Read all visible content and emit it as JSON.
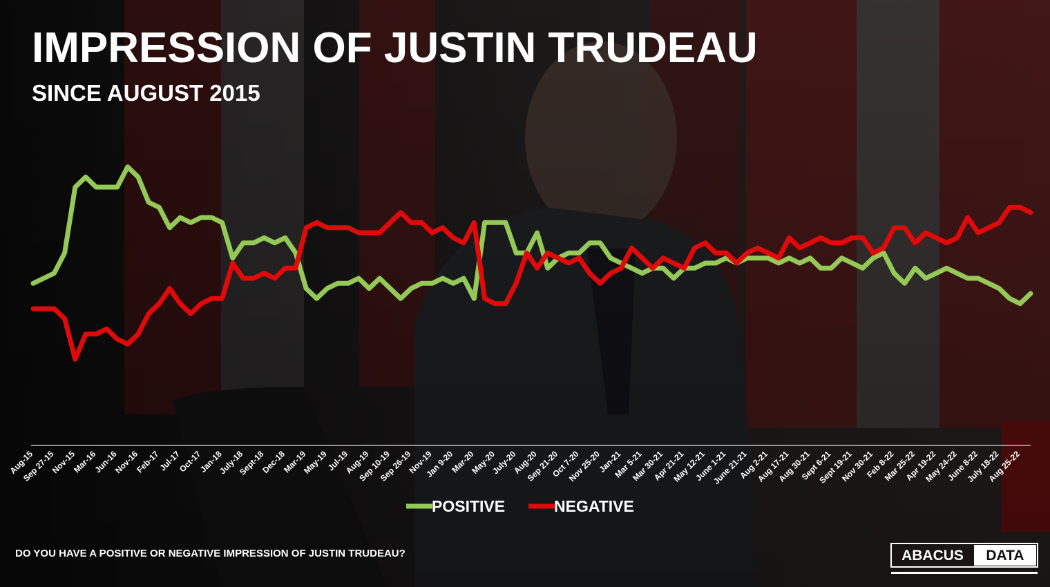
{
  "chart_data": {
    "type": "line",
    "title": "IMPRESSION OF JUSTIN TRUDEAU",
    "subtitle": "SINCE AUGUST 2015",
    "question": "DO YOU HAVE A POSITIVE OR NEGATIVE IMPRESSION OF JUSTIN TRUDEAU?",
    "source_logo": [
      "ABACUS",
      "DATA"
    ],
    "categories": [
      "Aug-15",
      null,
      "Sep 27-15",
      null,
      "Nov-15",
      null,
      "Mar-16",
      null,
      "Jun-16",
      null,
      "Nov-16",
      null,
      "Feb-17",
      null,
      "Jul-17",
      null,
      "Oct-17",
      null,
      "Jan-18",
      null,
      "July-18",
      null,
      "Sept-18",
      null,
      "Dec-18",
      null,
      "Mar-19",
      null,
      "May-19",
      null,
      "Jul-19",
      null,
      "Aug-19",
      null,
      "Sep 10-19",
      null,
      "Sep 26-19",
      null,
      "Nov-19",
      null,
      "Jan 9-20",
      null,
      "Mar-20",
      null,
      "May-20",
      null,
      "July-20",
      null,
      "Aug-20",
      null,
      "Sep 21-20",
      null,
      "Oct 7-20",
      null,
      "Nov 25-20",
      null,
      "Jan-21",
      null,
      "Mar 5-21",
      null,
      "Mar 30-21",
      null,
      "Apr 21-21",
      null,
      "May 12-21",
      null,
      "June 1-21",
      null,
      "June 21-21",
      null,
      "Aug 2-21",
      null,
      "Aug 17-21",
      null,
      "Aug 30-21",
      null,
      "Sept 6-21",
      null,
      "Sept 19-21",
      null,
      "Nov 30-21",
      null,
      "Feb 8-22",
      null,
      "Mar 25-22",
      null,
      "Apr 19-22",
      null,
      "May 24-22",
      null,
      "June 8-22",
      null,
      "July 18-22",
      null,
      "Aug 25-22",
      null
    ],
    "series": [
      {
        "name": "POSITIVE",
        "color": "#95c957",
        "values": [
          32,
          33,
          34,
          38,
          51,
          53,
          51,
          51,
          51,
          55,
          53,
          48,
          47,
          43,
          45,
          44,
          45,
          45,
          44,
          37,
          40,
          40,
          41,
          40,
          41,
          38,
          31,
          29,
          31,
          32,
          32,
          33,
          31,
          33,
          31,
          29,
          31,
          32,
          32,
          33,
          32,
          33,
          29,
          44,
          44,
          44,
          38,
          38,
          42,
          35,
          37,
          38,
          38,
          40,
          40,
          37,
          36,
          35,
          34,
          35,
          35,
          33,
          35,
          35,
          36,
          36,
          37,
          36,
          37,
          37,
          37,
          36,
          37,
          36,
          37,
          35,
          35,
          37,
          36,
          35,
          37,
          38,
          34,
          32,
          35,
          33,
          34,
          35,
          34,
          33,
          33,
          32,
          31,
          29,
          28,
          30
        ]
      },
      {
        "name": "NEGATIVE",
        "color": "#e00a0a",
        "values": [
          27,
          27,
          27,
          25,
          17,
          22,
          22,
          23,
          21,
          20,
          22,
          26,
          28,
          31,
          28,
          26,
          28,
          29,
          29,
          36,
          33,
          33,
          34,
          33,
          35,
          35,
          43,
          44,
          43,
          43,
          43,
          42,
          42,
          42,
          44,
          46,
          44,
          44,
          42,
          43,
          41,
          40,
          44,
          29,
          28,
          28,
          32,
          38,
          35,
          38,
          37,
          36,
          37,
          34,
          32,
          34,
          35,
          39,
          37,
          35,
          37,
          36,
          35,
          39,
          40,
          38,
          38,
          36,
          38,
          39,
          38,
          37,
          41,
          39,
          40,
          41,
          40,
          40,
          41,
          41,
          38,
          39,
          43,
          43,
          40,
          42,
          41,
          40,
          41,
          45,
          42,
          43,
          44,
          47,
          47,
          46
        ]
      }
    ],
    "ylim": [
      0,
      60
    ],
    "legend": "bottom"
  }
}
